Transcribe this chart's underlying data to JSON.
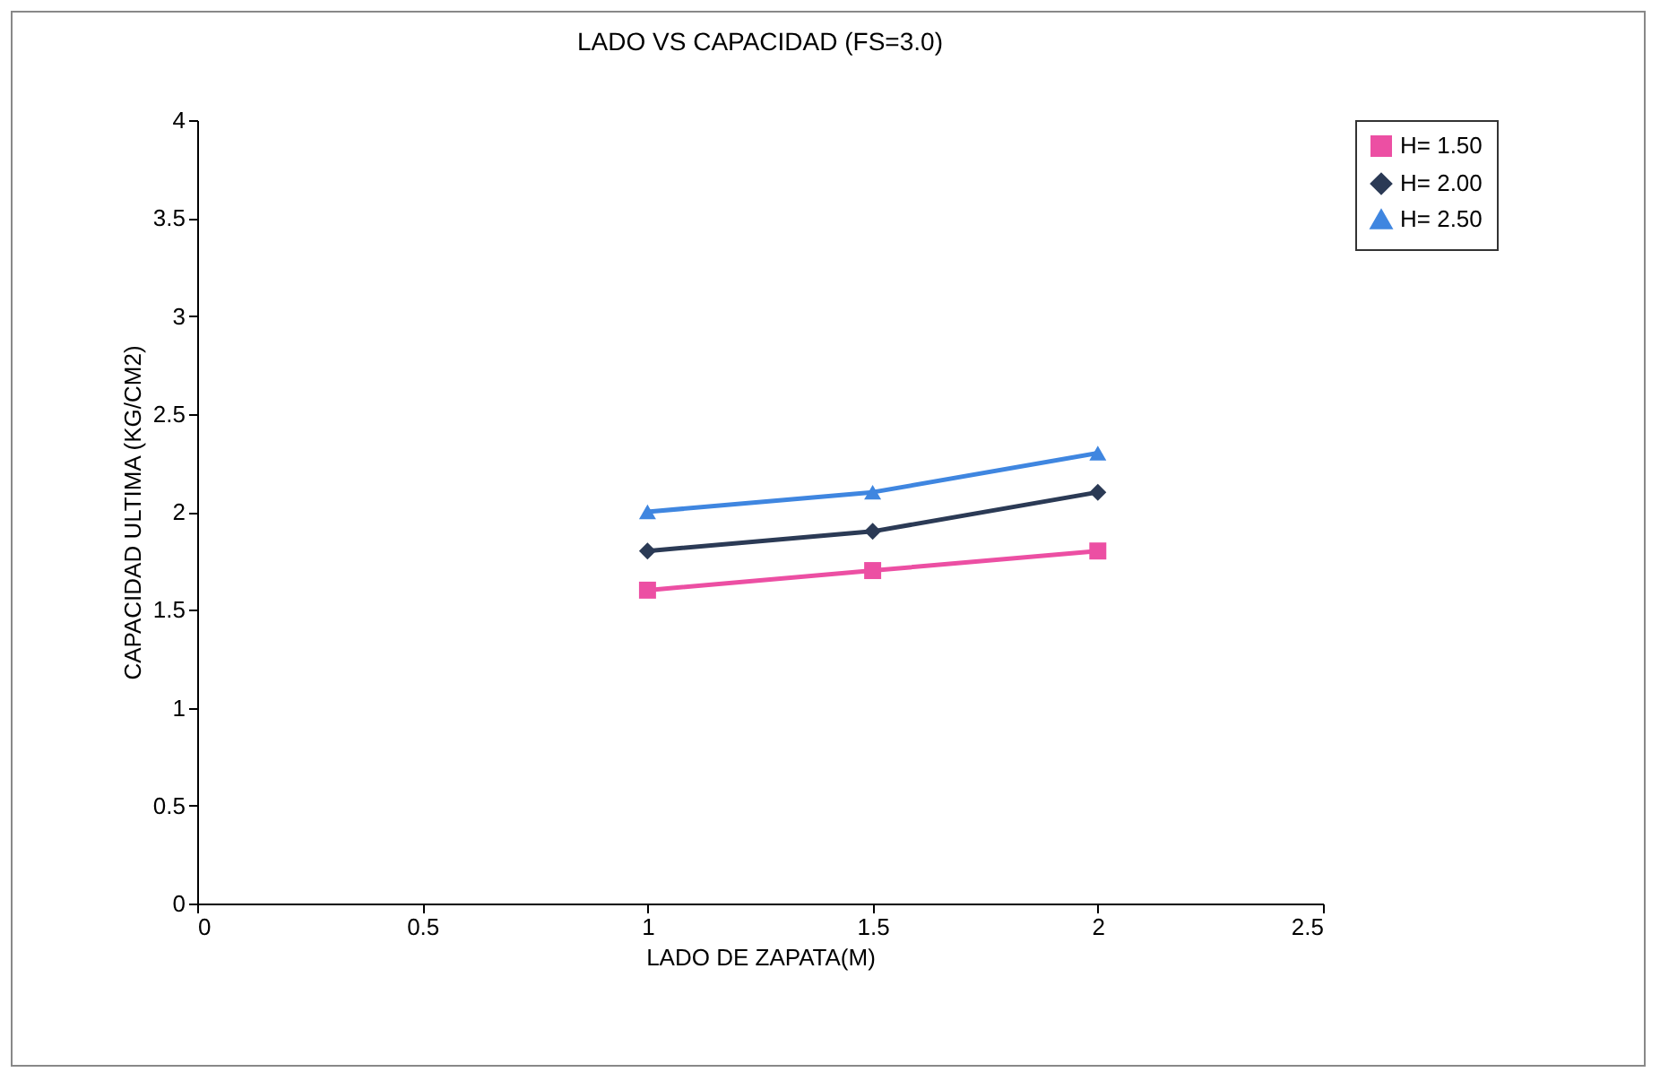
{
  "chart_data": {
    "type": "line",
    "title": "LADO VS CAPACIDAD (FS=3.0)",
    "xlabel": "LADO DE ZAPATA(M)",
    "ylabel": "CAPACIDAD ULTIMA  (KG/CM2)",
    "x": [
      1,
      1.5,
      2
    ],
    "series": [
      {
        "name": "H= 1.50",
        "color": "#ec4fa3",
        "marker": "square",
        "values": [
          1.6,
          1.7,
          1.8
        ]
      },
      {
        "name": "H= 2.00",
        "color": "#2b3a55",
        "marker": "diamond",
        "values": [
          1.8,
          1.9,
          2.1
        ]
      },
      {
        "name": "H= 2.50",
        "color": "#3f86e0",
        "marker": "triangle",
        "values": [
          2.0,
          2.1,
          2.3
        ]
      }
    ],
    "xlim": [
      0,
      2.5
    ],
    "xticks": [
      0,
      0.5,
      1,
      1.5,
      2,
      2.5
    ],
    "ylim": [
      0,
      4
    ],
    "yticks": [
      0,
      0.5,
      1,
      1.5,
      2,
      2.5,
      3,
      3.5,
      4
    ],
    "grid": false,
    "legend": "right",
    "line_style": "solid"
  }
}
